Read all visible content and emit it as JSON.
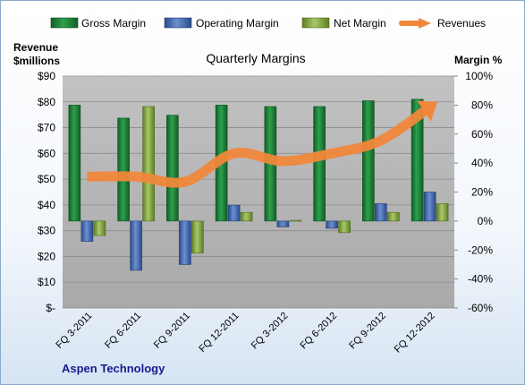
{
  "chart_data": {
    "type": "bar",
    "title": "Quarterly Margins",
    "categories": [
      "FQ 3-2011",
      "FQ 6-2011",
      "FQ 9-2011",
      "FQ 12-2011",
      "FQ 3-2012",
      "FQ 6-2012",
      "FQ 9-2012",
      "FQ 12-2012"
    ],
    "series": [
      {
        "name": "Gross Margin",
        "type": "bar",
        "axis": "right",
        "unit": "%",
        "color": "#1f8a3c",
        "values": [
          80,
          71,
          73,
          80,
          79,
          79,
          83,
          84
        ]
      },
      {
        "name": "Operating Margin",
        "type": "bar",
        "axis": "right",
        "unit": "%",
        "color": "#4a6fb5",
        "values": [
          -14,
          -34,
          -30,
          11,
          -4,
          -5,
          12,
          20
        ]
      },
      {
        "name": "Net Margin",
        "type": "bar",
        "axis": "right",
        "unit": "%",
        "color": "#8fb34a",
        "values": [
          -10,
          79,
          -22,
          6,
          0.5,
          -8,
          6,
          12
        ]
      },
      {
        "name": "Revenues",
        "type": "line",
        "axis": "left",
        "unit": "$ millions",
        "color": "#f0873a",
        "values": [
          51,
          51,
          49,
          60,
          57,
          60,
          65,
          78
        ]
      }
    ],
    "left_axis": {
      "label_line1": "Revenue",
      "label_line2": "$millions",
      "range": [
        0,
        90
      ],
      "ticks": [
        "$-",
        "$10",
        "$20",
        "$30",
        "$40",
        "$50",
        "$60",
        "$70",
        "$80",
        "$90"
      ]
    },
    "right_axis": {
      "label": "Margin %",
      "range": [
        -60,
        100
      ],
      "ticks": [
        "-60%",
        "-40%",
        "-20%",
        "0%",
        "20%",
        "40%",
        "60%",
        "80%",
        "100%"
      ]
    },
    "grid": true,
    "legend_position": "top",
    "colors": {
      "plot_bg": "#b5b5b5"
    }
  },
  "footer": {
    "company": "Aspen Technology"
  }
}
